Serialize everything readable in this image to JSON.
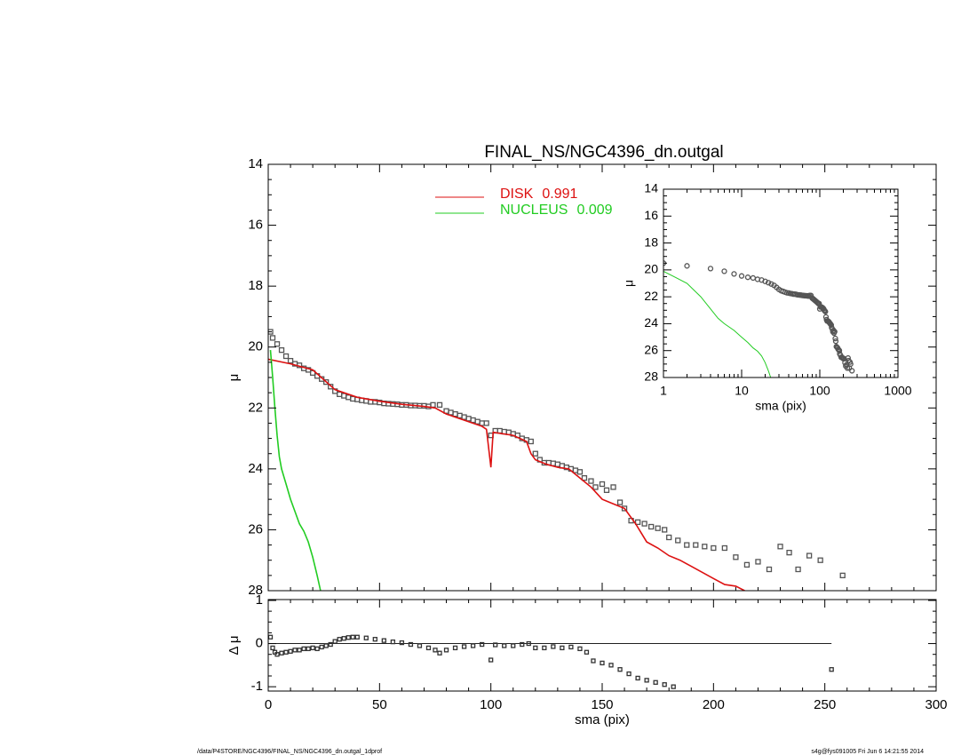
{
  "footer": {
    "left": "/data/P4STORE/NGC4396/FINAL_NS/NGC4396_dn.outgal_1dprof",
    "right": "s4g@fys091005  Fri Jun  6 14:21:55 2014"
  },
  "chart_data": [
    {
      "type": "scatter",
      "title": "FINAL_NS/NGC4396_dn.outgal",
      "ylabel": "μ",
      "xlim": [
        0,
        300
      ],
      "xticks": [
        0,
        50,
        100,
        150,
        200,
        250,
        300
      ],
      "ylim": [
        14,
        28
      ],
      "yticks": [
        14,
        16,
        18,
        20,
        22,
        24,
        26,
        28
      ],
      "y_inverted": true,
      "points": {
        "color": "#555555",
        "x": [
          1,
          2,
          4,
          6,
          8,
          10,
          12,
          14,
          16,
          18,
          20,
          22,
          24,
          26,
          28,
          30,
          32,
          34,
          36,
          38,
          40,
          42,
          44,
          46,
          48,
          50,
          52,
          54,
          56,
          58,
          60,
          62,
          64,
          66,
          68,
          70,
          72,
          74,
          77,
          80,
          82,
          84,
          86,
          88,
          90,
          92,
          94,
          96,
          98,
          100,
          102,
          104,
          106,
          108,
          110,
          112,
          114,
          116,
          118,
          120,
          122,
          124,
          126,
          128,
          130,
          132,
          134,
          136,
          138,
          140,
          142,
          145,
          147,
          150,
          152,
          155,
          158,
          160,
          163,
          166,
          169,
          172,
          175,
          178,
          180,
          184,
          188,
          192,
          196,
          200,
          205,
          210,
          215,
          220,
          225,
          230,
          234,
          238,
          243,
          248,
          258
        ],
        "values": [
          19.5,
          19.7,
          19.9,
          20.1,
          20.3,
          20.45,
          20.55,
          20.6,
          20.7,
          20.75,
          20.85,
          20.95,
          21.05,
          21.15,
          21.3,
          21.45,
          21.55,
          21.6,
          21.65,
          21.7,
          21.72,
          21.75,
          21.77,
          21.8,
          21.8,
          21.82,
          21.85,
          21.86,
          21.87,
          21.88,
          21.9,
          21.9,
          21.92,
          21.92,
          21.93,
          21.93,
          21.95,
          21.9,
          21.9,
          22.1,
          22.15,
          22.2,
          22.25,
          22.3,
          22.35,
          22.4,
          22.45,
          22.5,
          22.5,
          22.9,
          22.75,
          22.75,
          22.78,
          22.8,
          22.85,
          22.9,
          23.0,
          23.05,
          23.1,
          23.5,
          23.7,
          23.8,
          23.8,
          23.82,
          23.85,
          23.9,
          23.95,
          24.0,
          24.05,
          24.1,
          24.3,
          24.4,
          24.6,
          24.5,
          24.7,
          24.6,
          25.1,
          25.3,
          25.7,
          25.75,
          25.8,
          25.9,
          25.95,
          26.0,
          26.25,
          26.35,
          26.5,
          26.5,
          26.55,
          26.6,
          26.6,
          26.9,
          27.15,
          27.05,
          27.3,
          26.55,
          26.75,
          27.3,
          26.85,
          27.0,
          27.5
        ]
      },
      "series": [
        {
          "name": "DISK",
          "fraction": 0.991,
          "color": "#dd1111",
          "x": [
            0,
            10,
            20,
            30,
            40,
            50,
            60,
            70,
            75,
            80,
            90,
            96,
            98,
            100,
            101,
            110,
            116,
            118,
            120,
            125,
            130,
            135,
            140,
            145,
            150,
            155,
            160,
            165,
            170,
            175,
            180,
            185,
            190,
            195,
            200,
            205,
            210,
            214
          ],
          "values": [
            20.4,
            20.55,
            20.75,
            21.4,
            21.65,
            21.78,
            21.88,
            21.95,
            22.0,
            22.2,
            22.45,
            22.6,
            22.7,
            23.95,
            22.8,
            22.9,
            23.1,
            23.5,
            23.7,
            23.85,
            23.95,
            24.0,
            24.3,
            24.6,
            25.0,
            25.15,
            25.3,
            25.8,
            26.4,
            26.6,
            26.85,
            27.0,
            27.2,
            27.4,
            27.6,
            27.8,
            27.85,
            28.0
          ]
        },
        {
          "name": "NUCLEUS",
          "fraction": 0.009,
          "color": "#22cc22",
          "x": [
            1,
            2,
            3,
            4,
            5,
            6,
            8,
            10,
            12,
            14,
            16,
            18,
            20,
            22,
            23.5
          ],
          "values": [
            20.1,
            21.0,
            22.0,
            22.9,
            23.6,
            24.0,
            24.5,
            25.0,
            25.4,
            25.8,
            26.05,
            26.4,
            26.9,
            27.5,
            28.0
          ]
        }
      ]
    },
    {
      "type": "scatter",
      "ylabel": "Δ μ",
      "xlabel": "sma (pix)",
      "xlim": [
        0,
        300
      ],
      "xticks": [
        0,
        50,
        100,
        150,
        200,
        250,
        300
      ],
      "ylim": [
        -1.1,
        1.02
      ],
      "yticks": [
        -1,
        0,
        1
      ],
      "points": {
        "color": "#333333",
        "x": [
          1,
          2,
          3,
          4,
          6,
          8,
          10,
          12,
          14,
          16,
          18,
          20,
          22,
          24,
          26,
          28,
          30,
          32,
          34,
          36,
          38,
          40,
          44,
          48,
          52,
          56,
          60,
          64,
          68,
          72,
          75,
          77,
          80,
          84,
          88,
          92,
          96,
          100,
          102,
          106,
          110,
          114,
          117,
          120,
          124,
          128,
          132,
          136,
          140,
          143,
          146,
          150,
          154,
          158,
          162,
          166,
          170,
          174,
          178,
          182,
          253
        ],
        "values": [
          0.15,
          -0.1,
          -0.2,
          -0.25,
          -0.22,
          -0.2,
          -0.18,
          -0.15,
          -0.15,
          -0.12,
          -0.12,
          -0.1,
          -0.12,
          -0.08,
          -0.05,
          -0.02,
          0.05,
          0.1,
          0.12,
          0.14,
          0.15,
          0.15,
          0.13,
          0.1,
          0.07,
          0.04,
          0.02,
          -0.02,
          -0.05,
          -0.1,
          -0.15,
          -0.22,
          -0.15,
          -0.1,
          -0.07,
          -0.05,
          -0.02,
          -0.38,
          -0.03,
          -0.05,
          -0.05,
          -0.02,
          0.0,
          -0.1,
          -0.1,
          -0.07,
          -0.1,
          -0.08,
          -0.12,
          -0.2,
          -0.4,
          -0.45,
          -0.5,
          -0.6,
          -0.7,
          -0.8,
          -0.85,
          -0.9,
          -0.95,
          -1.0,
          -0.6
        ]
      }
    },
    {
      "type": "scatter",
      "ylabel": "μ",
      "xlabel": "sma (pix)",
      "log_x": true,
      "xlim": [
        1,
        1000
      ],
      "xticks": [
        1,
        10,
        100,
        1000
      ],
      "ylim": [
        14,
        28
      ],
      "yticks": [
        14,
        16,
        18,
        20,
        22,
        24,
        26,
        28
      ],
      "y_inverted": true
    }
  ]
}
